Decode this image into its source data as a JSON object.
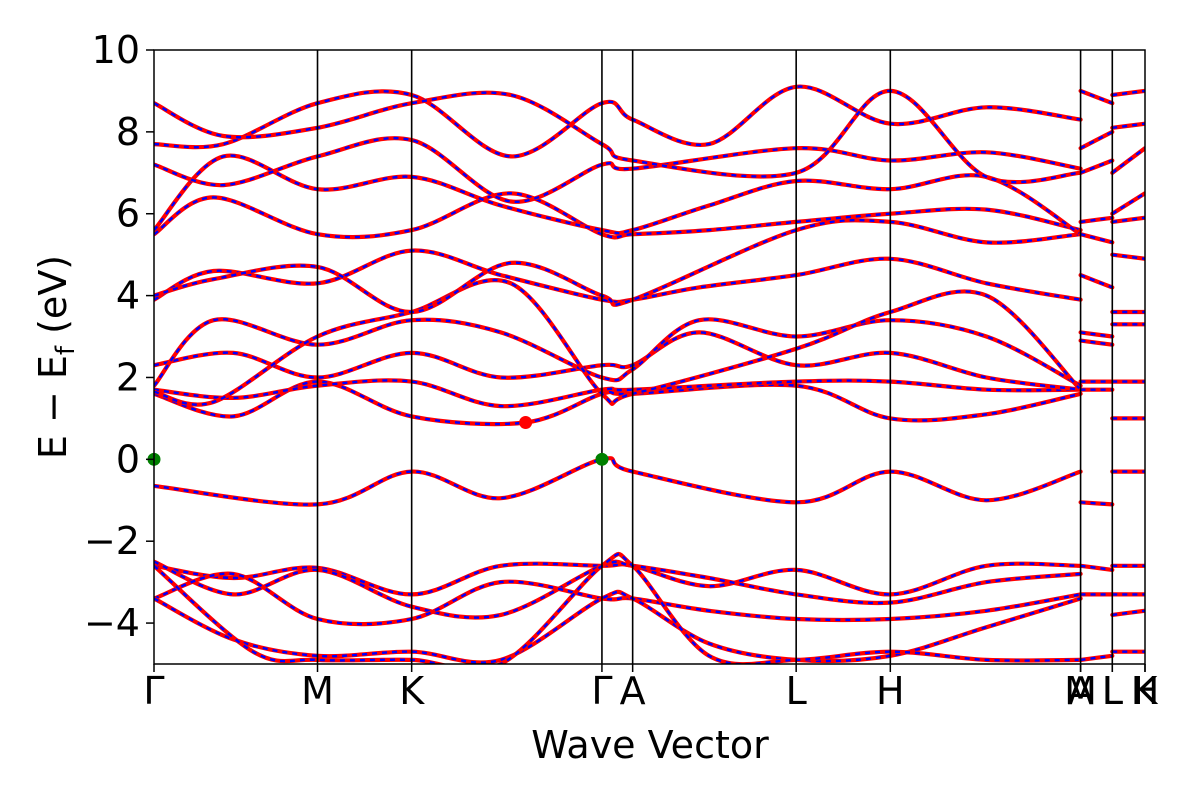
{
  "chart_data": {
    "type": "line",
    "title": "",
    "xlabel": "Wave Vector",
    "ylabel_main": "E − E",
    "ylabel_sub": "f",
    "ylabel_unit": " (eV)",
    "ylim": [
      -5,
      10
    ],
    "yticks": [
      10,
      8,
      6,
      4,
      2,
      0,
      -2,
      -4
    ],
    "ytick_labels": [
      "10",
      "8",
      "6",
      "4",
      "2",
      "0",
      "−2",
      "−4"
    ],
    "xlim": [
      0,
      1
    ],
    "kpoints": [
      {
        "label": "Γ",
        "x": 0.0
      },
      {
        "label": "M",
        "x": 0.165
      },
      {
        "label": "K",
        "x": 0.26
      },
      {
        "label": "Γ",
        "x": 0.452
      },
      {
        "label": "A",
        "x": 0.483
      },
      {
        "label": "L",
        "x": 0.648
      },
      {
        "label": "H",
        "x": 0.743
      },
      {
        "label": "A",
        "x": 0.935
      },
      {
        "label": "M",
        "x": 0.935
      },
      {
        "label": "L",
        "x": 0.967
      },
      {
        "label": "L",
        "x": 0.967
      },
      {
        "label": "K",
        "x": 1.0
      },
      {
        "label": "H",
        "x": 1.0
      }
    ],
    "series_style": {
      "outer_color": "#ff0000",
      "inner_color": "#0000ff",
      "inner_dash": "dashed"
    },
    "markers": [
      {
        "x": 0.0,
        "y": 0.0,
        "color": "#008000"
      },
      {
        "x": 0.452,
        "y": 0.0,
        "color": "#008000"
      },
      {
        "x": 0.375,
        "y": 0.9,
        "color": "#ff0000"
      }
    ],
    "bands": [
      {
        "x": [
          0,
          0.165,
          0.26,
          0.35,
          0.452,
          0.483,
          0.648,
          0.743,
          0.84,
          0.935
        ],
        "y": [
          -0.65,
          -1.1,
          -0.3,
          -0.95,
          0.0,
          -0.3,
          -1.05,
          -0.3,
          -1.0,
          -0.3
        ]
      },
      {
        "x": [
          0,
          0.08,
          0.165,
          0.26,
          0.375,
          0.452,
          0.483,
          0.648,
          0.743,
          0.84,
          0.935
        ],
        "y": [
          1.6,
          1.05,
          1.9,
          1.05,
          0.9,
          1.6,
          1.6,
          1.8,
          1.0,
          1.1,
          1.6
        ]
      },
      {
        "x": [
          0,
          0.08,
          0.165,
          0.26,
          0.35,
          0.452,
          0.483,
          0.648,
          0.743,
          0.84,
          0.935
        ],
        "y": [
          1.7,
          1.5,
          1.8,
          1.9,
          1.3,
          1.7,
          1.7,
          1.9,
          1.9,
          1.7,
          1.7
        ]
      },
      {
        "x": [
          0,
          0.08,
          0.165,
          0.26,
          0.35,
          0.452,
          0.483,
          0.55,
          0.648,
          0.743,
          0.84,
          0.935
        ],
        "y": [
          2.3,
          2.6,
          2.0,
          2.6,
          2.0,
          2.3,
          2.3,
          3.1,
          2.3,
          2.6,
          2.0,
          1.7
        ]
      },
      {
        "x": [
          0,
          0.06,
          0.165,
          0.26,
          0.35,
          0.452,
          0.483,
          0.55,
          0.648,
          0.743,
          0.84,
          0.935
        ],
        "y": [
          1.8,
          3.4,
          2.8,
          3.4,
          3.1,
          2.0,
          2.2,
          3.4,
          3.0,
          3.4,
          3.0,
          1.8
        ]
      },
      {
        "x": [
          0,
          0.06,
          0.165,
          0.26,
          0.36,
          0.452,
          0.483,
          0.648,
          0.743,
          0.84,
          0.935
        ],
        "y": [
          1.65,
          1.4,
          3.0,
          3.6,
          4.3,
          1.6,
          1.6,
          2.7,
          3.6,
          4.0,
          1.7
        ]
      },
      {
        "x": [
          0,
          0.06,
          0.165,
          0.26,
          0.35,
          0.452,
          0.483,
          0.55,
          0.648,
          0.743,
          0.84,
          0.935
        ],
        "y": [
          3.9,
          4.6,
          4.3,
          5.1,
          4.5,
          3.9,
          3.9,
          4.2,
          4.5,
          4.9,
          4.3,
          3.9
        ]
      },
      {
        "x": [
          0,
          0.06,
          0.165,
          0.26,
          0.36,
          0.452,
          0.483,
          0.648,
          0.743,
          0.84,
          0.935
        ],
        "y": [
          4.0,
          4.4,
          4.7,
          3.6,
          4.8,
          4.0,
          3.9,
          5.6,
          5.8,
          5.3,
          5.5
        ]
      },
      {
        "x": [
          0,
          0.06,
          0.165,
          0.26,
          0.36,
          0.452,
          0.483,
          0.56,
          0.648,
          0.743,
          0.84,
          0.935
        ],
        "y": [
          5.5,
          6.4,
          5.5,
          5.6,
          6.5,
          5.5,
          5.5,
          5.6,
          5.8,
          6.0,
          6.1,
          5.6
        ]
      },
      {
        "x": [
          0,
          0.07,
          0.165,
          0.26,
          0.35,
          0.452,
          0.483,
          0.56,
          0.648,
          0.743,
          0.84,
          0.935
        ],
        "y": [
          5.6,
          7.4,
          6.6,
          6.9,
          6.2,
          5.6,
          5.6,
          6.2,
          6.8,
          6.6,
          6.9,
          5.5
        ]
      },
      {
        "x": [
          0,
          0.07,
          0.165,
          0.26,
          0.36,
          0.452,
          0.483,
          0.648,
          0.743,
          0.84,
          0.935
        ],
        "y": [
          7.2,
          6.7,
          7.4,
          7.8,
          6.3,
          7.2,
          7.1,
          7.6,
          7.3,
          7.5,
          7.1
        ]
      },
      {
        "x": [
          0,
          0.07,
          0.165,
          0.26,
          0.36,
          0.452,
          0.483,
          0.56,
          0.648,
          0.743,
          0.84,
          0.935
        ],
        "y": [
          7.7,
          7.7,
          8.7,
          8.9,
          7.4,
          8.7,
          8.3,
          7.7,
          9.1,
          8.2,
          8.6,
          8.3
        ]
      },
      {
        "x": [
          0,
          0.07,
          0.165,
          0.26,
          0.36,
          0.452,
          0.483,
          0.648,
          0.743,
          0.84,
          0.935
        ],
        "y": [
          8.7,
          7.9,
          8.1,
          8.7,
          8.9,
          7.7,
          7.3,
          7.0,
          9.0,
          6.9,
          7.0
        ]
      },
      {
        "x": [
          0,
          0.08,
          0.165,
          0.26,
          0.35,
          0.452,
          0.483,
          0.56,
          0.648,
          0.743,
          0.84,
          0.935
        ],
        "y": [
          -2.6,
          -2.9,
          -2.65,
          -3.3,
          -2.6,
          -2.6,
          -2.6,
          -3.1,
          -2.7,
          -3.3,
          -2.6,
          -2.6
        ]
      },
      {
        "x": [
          0,
          0.08,
          0.165,
          0.26,
          0.35,
          0.452,
          0.483,
          0.56,
          0.648,
          0.743,
          0.84,
          0.935
        ],
        "y": [
          -2.5,
          -3.3,
          -2.7,
          -3.6,
          -3.8,
          -2.6,
          -2.6,
          -2.9,
          -3.3,
          -3.5,
          -3.0,
          -2.8
        ]
      },
      {
        "x": [
          0,
          0.08,
          0.165,
          0.26,
          0.35,
          0.452,
          0.483,
          0.56,
          0.648,
          0.743,
          0.84,
          0.935
        ],
        "y": [
          -3.4,
          -2.8,
          -3.9,
          -3.9,
          -3.0,
          -3.4,
          -3.4,
          -3.7,
          -3.9,
          -3.9,
          -3.7,
          -3.3
        ]
      },
      {
        "x": [
          0,
          0.08,
          0.165,
          0.26,
          0.35,
          0.452,
          0.483,
          0.56,
          0.648,
          0.743,
          0.84,
          0.935
        ],
        "y": [
          -3.4,
          -4.4,
          -4.8,
          -4.7,
          -4.9,
          -3.4,
          -3.4,
          -4.5,
          -4.9,
          -4.8,
          -4.1,
          -3.4
        ]
      },
      {
        "x": [
          0,
          0.1,
          0.165,
          0.26,
          0.35,
          0.452,
          0.483,
          0.56,
          0.648,
          0.743,
          0.84,
          0.935
        ],
        "y": [
          -2.6,
          -4.7,
          -4.9,
          -4.9,
          -5.0,
          -2.6,
          -2.6,
          -4.8,
          -4.9,
          -4.7,
          -4.9,
          -4.9
        ]
      }
    ],
    "tail_segments": [
      {
        "x": [
          0.935,
          0.967
        ],
        "y": [
          9.0,
          8.7
        ]
      },
      {
        "x": [
          0.935,
          0.967
        ],
        "y": [
          7.6,
          8.0
        ]
      },
      {
        "x": [
          0.935,
          0.967
        ],
        "y": [
          7.0,
          7.3
        ]
      },
      {
        "x": [
          0.935,
          0.967
        ],
        "y": [
          5.8,
          5.9
        ]
      },
      {
        "x": [
          0.935,
          0.967
        ],
        "y": [
          5.5,
          5.3
        ]
      },
      {
        "x": [
          0.935,
          0.967
        ],
        "y": [
          4.5,
          4.2
        ]
      },
      {
        "x": [
          0.935,
          0.967
        ],
        "y": [
          3.1,
          3.0
        ]
      },
      {
        "x": [
          0.935,
          0.967
        ],
        "y": [
          2.9,
          2.8
        ]
      },
      {
        "x": [
          0.935,
          0.967
        ],
        "y": [
          1.9,
          1.9
        ]
      },
      {
        "x": [
          0.935,
          0.967
        ],
        "y": [
          1.7,
          1.7
        ]
      },
      {
        "x": [
          0.935,
          0.967
        ],
        "y": [
          -1.05,
          -1.1
        ]
      },
      {
        "x": [
          0.935,
          0.967
        ],
        "y": [
          -2.6,
          -2.7
        ]
      },
      {
        "x": [
          0.935,
          0.967
        ],
        "y": [
          -3.3,
          -3.3
        ]
      },
      {
        "x": [
          0.935,
          0.967
        ],
        "y": [
          -4.9,
          -4.8
        ]
      },
      {
        "x": [
          0.967,
          1.0
        ],
        "y": [
          8.9,
          9.0
        ]
      },
      {
        "x": [
          0.967,
          1.0
        ],
        "y": [
          8.1,
          8.2
        ]
      },
      {
        "x": [
          0.967,
          1.0
        ],
        "y": [
          7.0,
          7.6
        ]
      },
      {
        "x": [
          0.967,
          1.0
        ],
        "y": [
          6.0,
          6.5
        ]
      },
      {
        "x": [
          0.967,
          1.0
        ],
        "y": [
          5.8,
          5.9
        ]
      },
      {
        "x": [
          0.967,
          1.0
        ],
        "y": [
          5.0,
          4.9
        ]
      },
      {
        "x": [
          0.967,
          1.0
        ],
        "y": [
          3.6,
          3.6
        ]
      },
      {
        "x": [
          0.967,
          1.0
        ],
        "y": [
          3.3,
          3.3
        ]
      },
      {
        "x": [
          0.967,
          1.0
        ],
        "y": [
          1.9,
          1.9
        ]
      },
      {
        "x": [
          0.967,
          1.0
        ],
        "y": [
          1.0,
          1.0
        ]
      },
      {
        "x": [
          0.967,
          1.0
        ],
        "y": [
          -0.3,
          -0.3
        ]
      },
      {
        "x": [
          0.967,
          1.0
        ],
        "y": [
          -2.6,
          -2.6
        ]
      },
      {
        "x": [
          0.967,
          1.0
        ],
        "y": [
          -3.3,
          -3.3
        ]
      },
      {
        "x": [
          0.967,
          1.0
        ],
        "y": [
          -3.8,
          -3.7
        ]
      },
      {
        "x": [
          0.967,
          1.0
        ],
        "y": [
          -4.7,
          -4.7
        ]
      }
    ]
  }
}
